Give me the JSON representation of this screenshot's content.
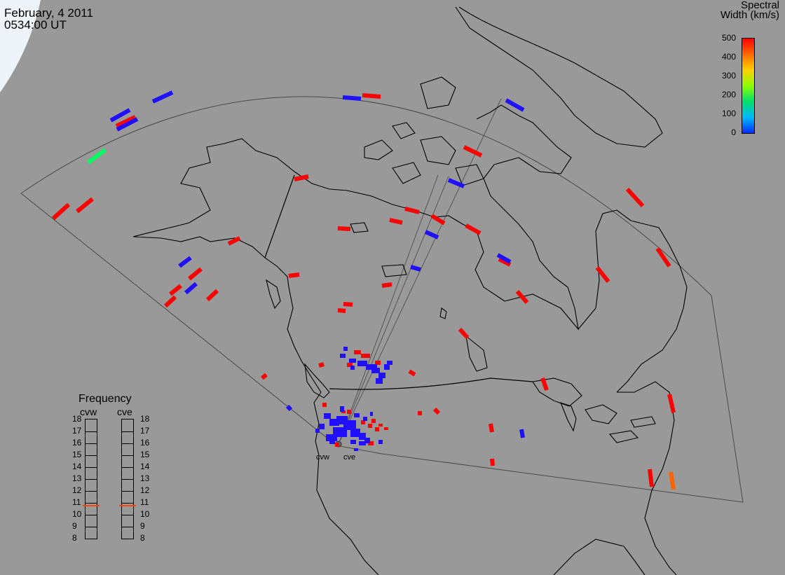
{
  "header": {
    "date": "February, 4 2011",
    "time": "0534:00 UT"
  },
  "colorbar": {
    "title_line1": "Spectral",
    "title_line2": "Width (km/s)",
    "ticks": [
      "500",
      "400",
      "300",
      "200",
      "100",
      "0"
    ],
    "gradient": [
      "#ff0000",
      "#ff6a00",
      "#ffcf00",
      "#8cff00",
      "#00e06a",
      "#00b8ff",
      "#0030ff"
    ]
  },
  "frequency": {
    "title": "Frequency",
    "radars": [
      {
        "name": "cvw",
        "selected_mhz": 10.8
      },
      {
        "name": "cve",
        "selected_mhz": 10.8
      }
    ],
    "ticks": [
      "18",
      "17",
      "16",
      "15",
      "14",
      "13",
      "12",
      "11",
      "10",
      "9",
      "8"
    ],
    "marker_color": "#ff4400"
  },
  "sites": [
    {
      "name": "cvw"
    },
    {
      "name": "cve"
    }
  ],
  "colors": {
    "background": "#999999",
    "red": "#ff0000",
    "blue": "#2010ff",
    "green": "#00ff60",
    "orange": "#ff6400"
  }
}
